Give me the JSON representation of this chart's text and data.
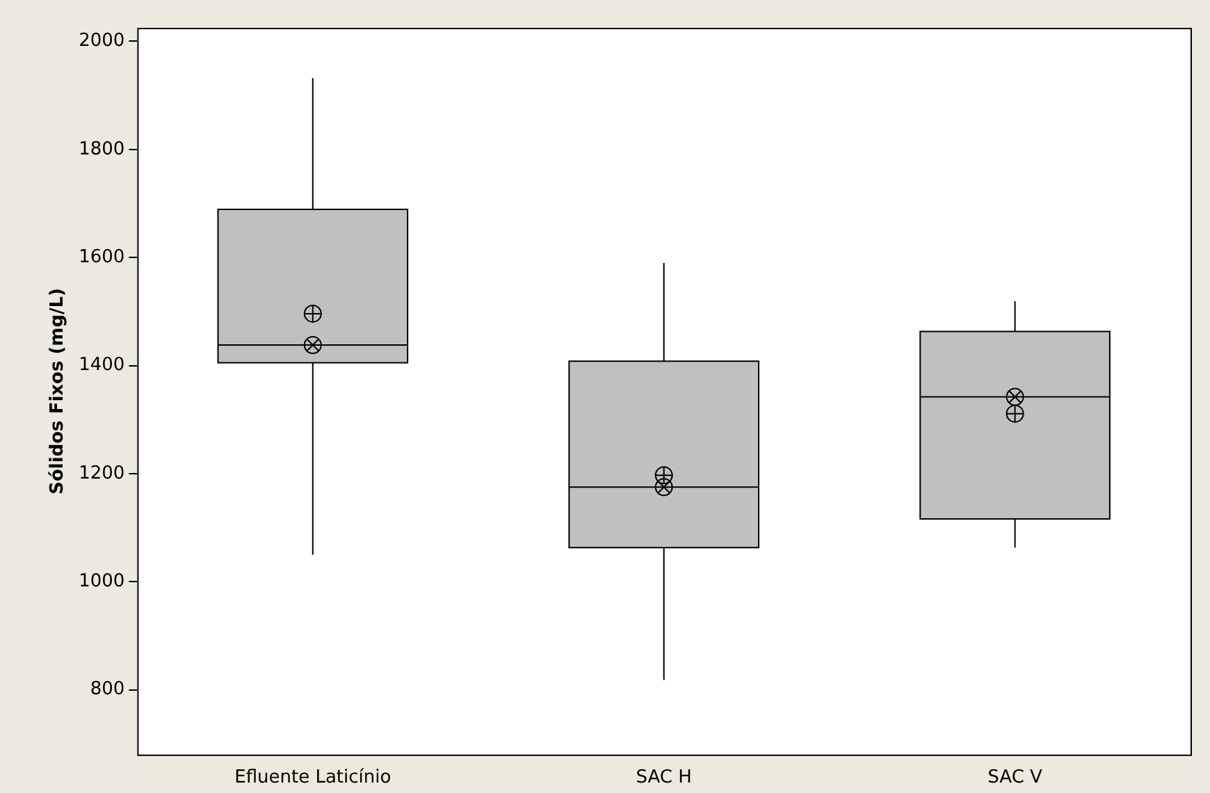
{
  "chart_data": {
    "type": "box",
    "ylabel": "Sólidos Fixos (mg/L)",
    "categories": [
      "Efluente Laticínio",
      "SAC H",
      "SAC V"
    ],
    "boxes": [
      {
        "low": 1050,
        "q1": 1405,
        "median": 1438,
        "q3": 1689,
        "high": 1932
      },
      {
        "low": 818,
        "q1": 1063,
        "median": 1175,
        "q3": 1408,
        "high": 1590
      },
      {
        "low": 1063,
        "q1": 1116,
        "median": 1342,
        "q3": 1463,
        "high": 1519
      }
    ],
    "series": [
      {
        "type": "scatter",
        "marker": "circle",
        "color": "#000000",
        "x": [
          "Efluente Laticínio",
          "SAC H",
          "SAC V"
        ],
        "values": [
          1496,
          1197,
          1311
        ]
      },
      {
        "type": "scatter",
        "marker": "cross",
        "color": "#000000",
        "x": [
          "Efluente Laticínio",
          "SAC H",
          "SAC V"
        ],
        "values": [
          1438,
          1175,
          1342
        ]
      }
    ],
    "color": "#c0c0c0",
    "ylim": [
      680,
      2025
    ],
    "yticks": [
      800,
      1000,
      1200,
      1400,
      1600,
      1800,
      2000
    ],
    "grid": false,
    "legend": false
  }
}
